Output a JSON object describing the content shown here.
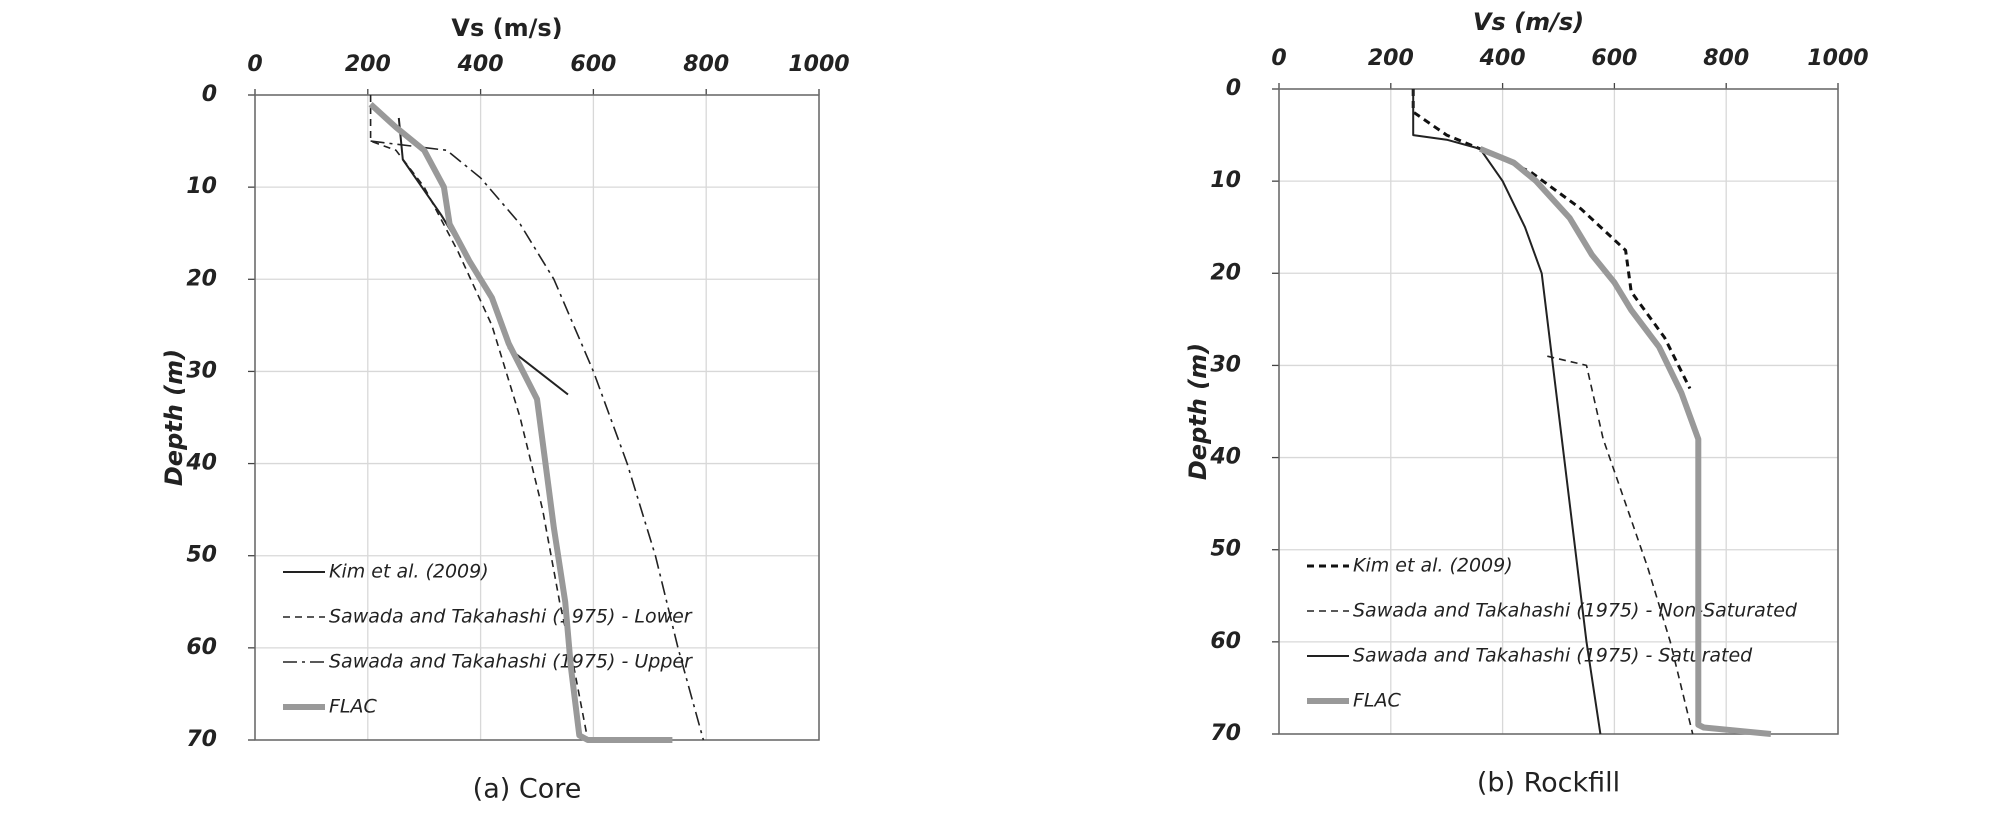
{
  "chart_data": [
    {
      "type": "line",
      "title": "(a) Core",
      "x_label": "Vs (m/s)",
      "y_label": "Depth (m)",
      "xlim": [
        0,
        1000
      ],
      "xticks": [
        0,
        200,
        400,
        600,
        800,
        1000
      ],
      "ylim": [
        0,
        70
      ],
      "yticks": [
        0,
        10,
        20,
        30,
        40,
        50,
        60,
        70
      ],
      "y_inverted": true,
      "grid": true,
      "series": [
        {
          "name": "Kim et al. (2009)",
          "color": "#222222",
          "style": "solid",
          "width": 2,
          "x": [
            255,
            262,
            330,
            380,
            420,
            450,
            555
          ],
          "values": [
            2.5,
            7,
            13,
            18,
            22,
            27.5,
            32.5
          ]
        },
        {
          "name": "Sawada and Takahashi (1975) - Lower",
          "color": "#222222",
          "style": "dashed",
          "width": 1.6,
          "x": [
            205,
            205,
            250,
            300,
            360,
            420,
            470,
            510,
            540,
            565,
            590
          ],
          "values": [
            0,
            5,
            6,
            10,
            17,
            25,
            35,
            45,
            55,
            62,
            70
          ]
        },
        {
          "name": "Sawada and Takahashi (1975) - Upper",
          "color": "#222222",
          "style": "dashdot",
          "width": 1.6,
          "x": [
            205,
            340,
            400,
            470,
            530,
            600,
            660,
            710,
            750,
            795
          ],
          "values": [
            5,
            6,
            9,
            14,
            20,
            30,
            40,
            50,
            60,
            70
          ]
        },
        {
          "name": "FLAC",
          "color": "#999999",
          "style": "solid",
          "width": 6,
          "x": [
            205,
            250,
            300,
            335,
            345,
            380,
            420,
            450,
            500,
            515,
            530,
            550,
            560,
            575,
            590,
            740
          ],
          "values": [
            1,
            3.5,
            6,
            10,
            14,
            18,
            22,
            27,
            33,
            40,
            47,
            55,
            62,
            69.5,
            70,
            70
          ]
        }
      ]
    },
    {
      "type": "line",
      "title": "(b) Rockfill",
      "x_label": "Vs (m/s)",
      "y_label": "Depth (m)",
      "xlim": [
        0,
        1000
      ],
      "xticks": [
        0,
        200,
        400,
        600,
        800,
        1000
      ],
      "ylim": [
        0,
        70
      ],
      "yticks": [
        0,
        10,
        20,
        30,
        40,
        50,
        60,
        70
      ],
      "y_inverted": true,
      "grid": true,
      "series": [
        {
          "name": "Kim et al. (2009)",
          "color": "#111111",
          "style": "dashed",
          "width": 3,
          "x": [
            240,
            240,
            300,
            360,
            450,
            540,
            620,
            630,
            690,
            735
          ],
          "values": [
            0,
            2.5,
            5,
            6.5,
            9,
            13,
            17.5,
            22,
            27,
            32.5
          ]
        },
        {
          "name": "Sawada and Takahashi (1975) - Non-Saturated",
          "color": "#222222",
          "style": "dashed",
          "width": 1.6,
          "x": [
            480,
            550,
            580,
            620,
            660,
            700,
            740
          ],
          "values": [
            29,
            30,
            38,
            45,
            52,
            60,
            70
          ]
        },
        {
          "name": "Sawada and Takahashi (1975) - Saturated",
          "color": "#222222",
          "style": "solid",
          "width": 2,
          "x": [
            240,
            240,
            300,
            360,
            400,
            440,
            470,
            490,
            510,
            530,
            550,
            575
          ],
          "values": [
            0,
            5,
            5.5,
            6.5,
            10,
            15,
            20,
            30,
            40,
            50,
            60,
            70
          ]
        },
        {
          "name": "FLAC",
          "color": "#999999",
          "style": "solid",
          "width": 6,
          "x": [
            360,
            420,
            460,
            520,
            560,
            600,
            630,
            680,
            720,
            750,
            750,
            750,
            760,
            880
          ],
          "values": [
            6.5,
            8,
            10,
            14,
            18,
            21,
            24,
            28,
            33,
            38,
            50,
            69,
            69.3,
            70
          ]
        }
      ]
    }
  ]
}
